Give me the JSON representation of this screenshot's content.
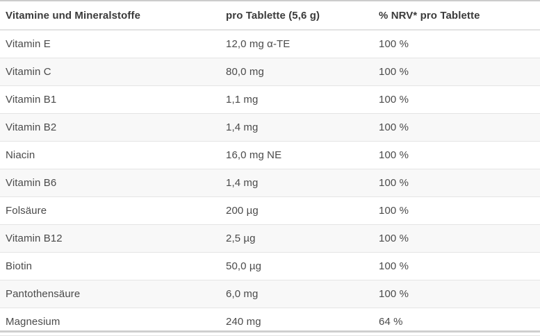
{
  "table": {
    "headers": [
      "Vitamine und Mineralstoffe",
      "pro Tablette (5,6 g)",
      "% NRV* pro Tablette"
    ],
    "rows": [
      {
        "name": "Vitamin E",
        "amount": "12,0 mg α-TE",
        "nrv": "100 %"
      },
      {
        "name": "Vitamin C",
        "amount": "80,0 mg",
        "nrv": "100 %"
      },
      {
        "name": "Vitamin B1",
        "amount": "1,1 mg",
        "nrv": "100 %"
      },
      {
        "name": "Vitamin B2",
        "amount": "1,4 mg",
        "nrv": "100 %"
      },
      {
        "name": "Niacin",
        "amount": "16,0 mg NE",
        "nrv": "100 %"
      },
      {
        "name": "Vitamin B6",
        "amount": "1,4 mg",
        "nrv": "100 %"
      },
      {
        "name": "Folsäure",
        "amount": "200 µg",
        "nrv": "100 %"
      },
      {
        "name": "Vitamin B12",
        "amount": "2,5 µg",
        "nrv": "100 %"
      },
      {
        "name": "Biotin",
        "amount": "50,0 µg",
        "nrv": "100 %"
      },
      {
        "name": "Pantothensäure",
        "amount": "6,0 mg",
        "nrv": "100 %"
      },
      {
        "name": "Magnesium",
        "amount": "240 mg",
        "nrv": "64 %"
      }
    ],
    "colors": {
      "header_text": "#3b3b3b",
      "body_text": "#4a4a4a",
      "stripe": "#f8f8f8",
      "separator": "#e4e4e4",
      "header_border": "#e2e2e2",
      "top_border": "#cccccc",
      "bottom_strip": "#cfcfcf",
      "background": "#ffffff"
    }
  }
}
